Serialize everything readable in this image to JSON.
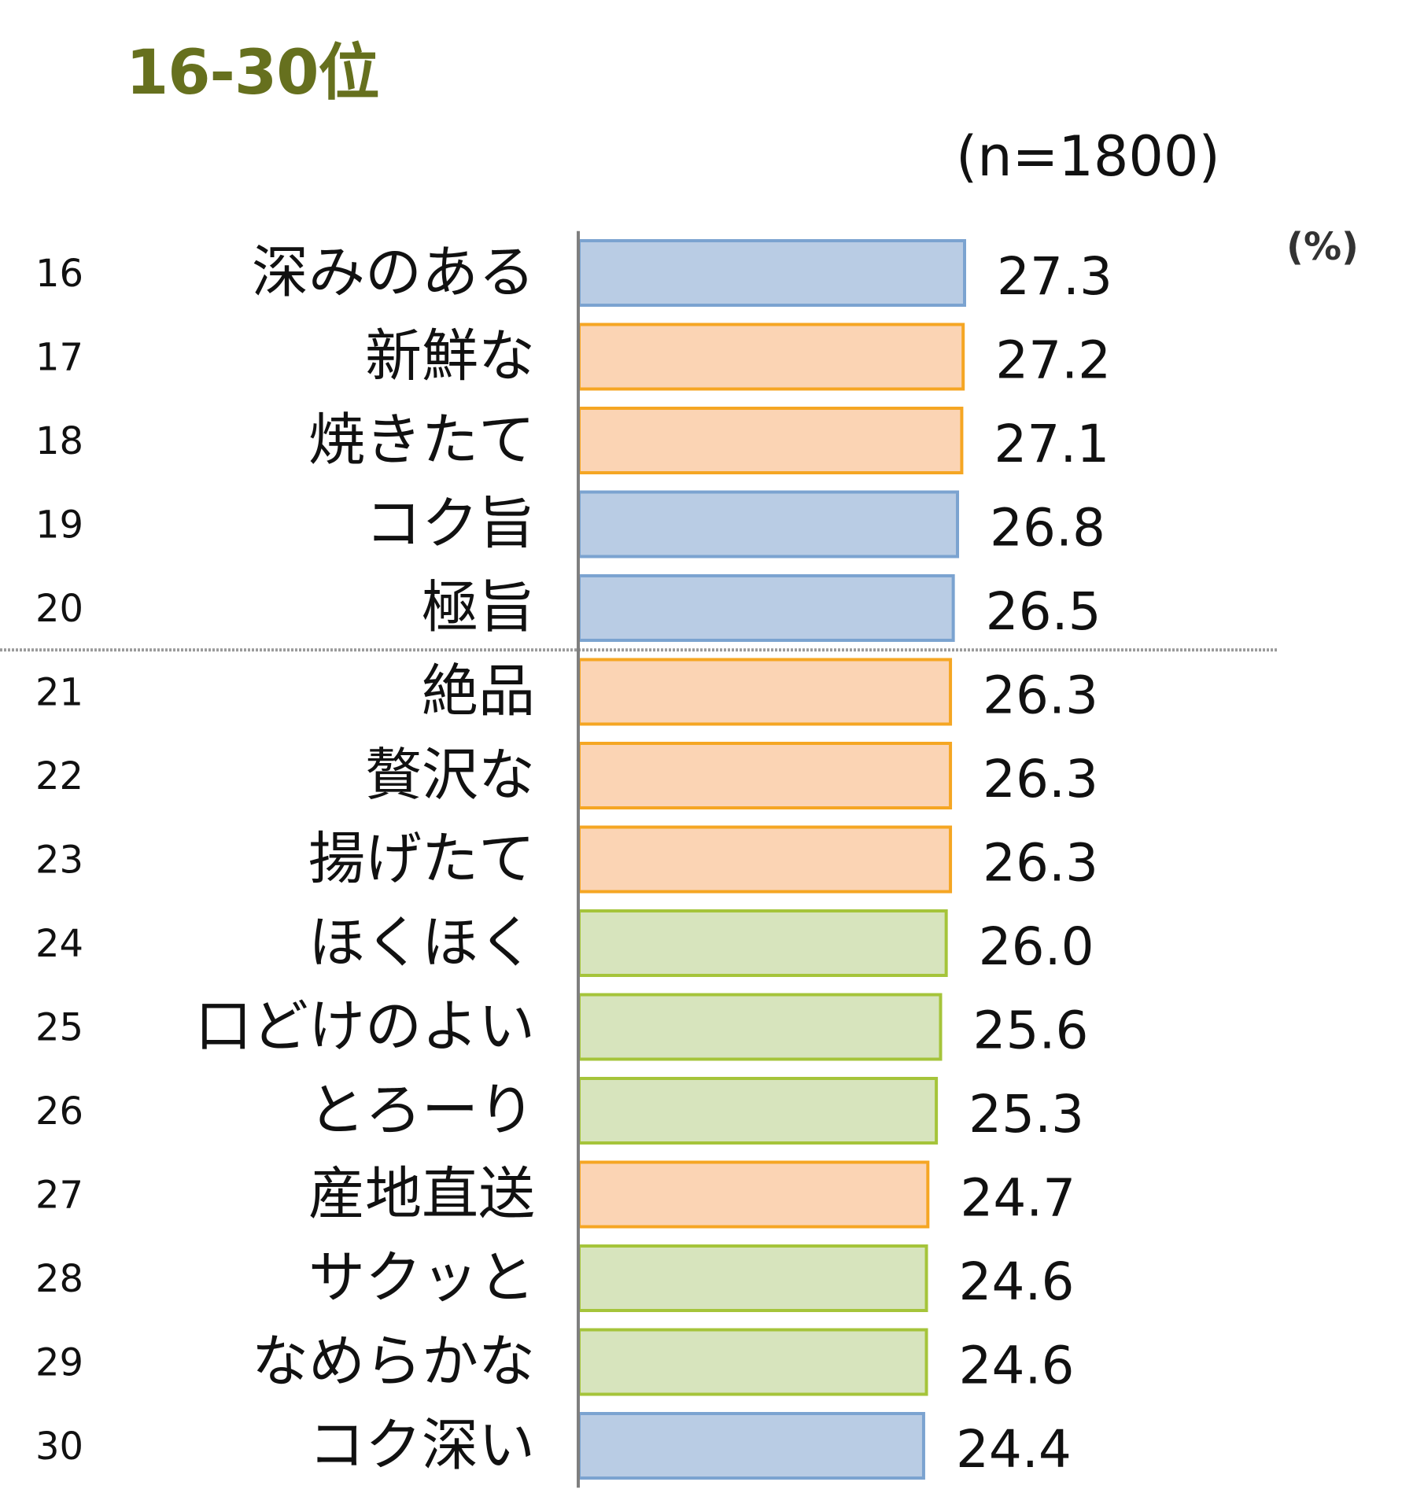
{
  "header": {
    "title": "16-30位",
    "sample_size": "(n=1800)",
    "unit": "(%)"
  },
  "colors": {
    "blue_fill": "#b9cce4",
    "blue_stroke": "#7ba3d0",
    "orange_fill": "#fbd4b4",
    "orange_stroke": "#f5a623",
    "green_fill": "#d7e4bd",
    "green_stroke": "#a5c43a",
    "axis": "#7f7f7f",
    "title": "#66701e"
  },
  "chart_data": {
    "type": "bar",
    "orientation": "horizontal",
    "title": "16-30位",
    "categories": [
      "深みのある",
      "新鮮な",
      "焼きたて",
      "コク旨",
      "極旨",
      "絶品",
      "贅沢な",
      "揚げたて",
      "ほくほく",
      "口どけのよい",
      "とろーり",
      "産地直送",
      "サクッと",
      "なめらかな",
      "コク深い"
    ],
    "ranks": [
      "16",
      "17",
      "18",
      "19",
      "20",
      "21",
      "22",
      "23",
      "24",
      "25",
      "26",
      "27",
      "28",
      "29",
      "30"
    ],
    "values": [
      27.3,
      27.2,
      27.1,
      26.8,
      26.5,
      26.3,
      26.3,
      26.3,
      26.0,
      25.6,
      25.3,
      24.7,
      24.6,
      24.6,
      24.4
    ],
    "value_labels": [
      "27.3",
      "27.2",
      "27.1",
      "26.8",
      "26.5",
      "26.3",
      "26.3",
      "26.3",
      "26.0",
      "25.6",
      "25.3",
      "24.7",
      "24.6",
      "24.6",
      "24.4"
    ],
    "color_groups": [
      "blue",
      "orange",
      "orange",
      "blue",
      "blue",
      "orange",
      "orange",
      "orange",
      "green",
      "green",
      "green",
      "orange",
      "green",
      "green",
      "blue"
    ],
    "separator_after_rank": "20",
    "xlim": [
      0,
      27.3
    ],
    "grid": false,
    "legend": "none"
  }
}
